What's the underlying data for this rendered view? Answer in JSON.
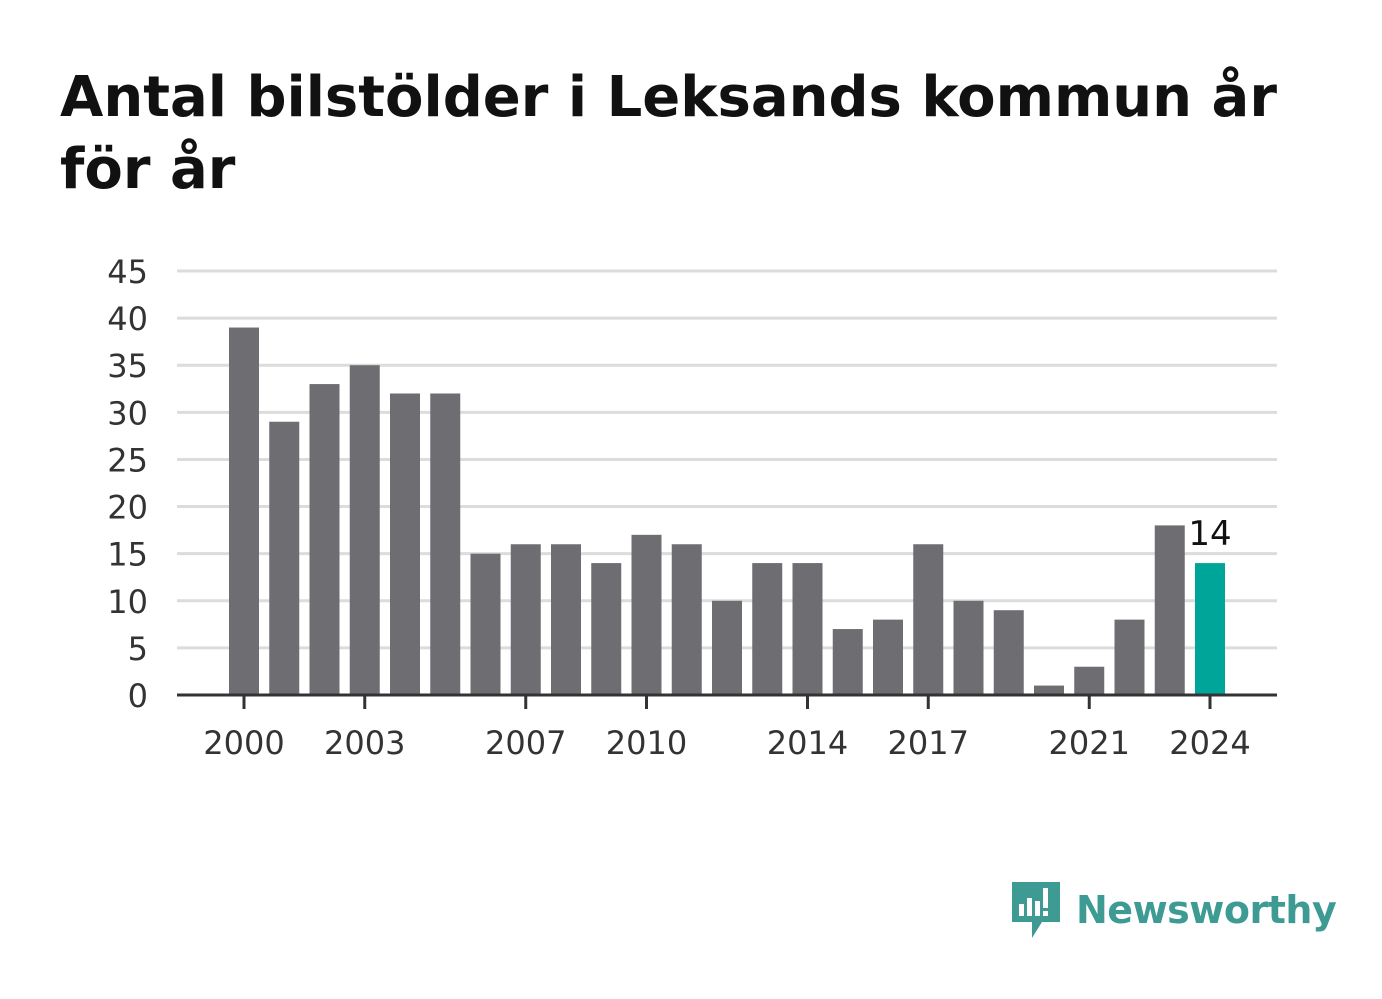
{
  "title": "Antal bilstölder i Leksands kommun år för år",
  "brand": {
    "name": "Newsworthy",
    "icon": "newsworthy-speech-bubble-bar-icon",
    "color": "#3d9b93"
  },
  "chart_data": {
    "type": "bar",
    "title": "Antal bilstölder i Leksands kommun år för år",
    "xlabel": "",
    "ylabel": "",
    "categories": [
      2000,
      2001,
      2002,
      2003,
      2004,
      2005,
      2006,
      2007,
      2008,
      2009,
      2010,
      2011,
      2012,
      2013,
      2014,
      2015,
      2016,
      2017,
      2018,
      2019,
      2020,
      2021,
      2022,
      2023,
      2024
    ],
    "values": [
      39,
      29,
      33,
      35,
      32,
      32,
      15,
      16,
      16,
      14,
      17,
      16,
      10,
      14,
      14,
      7,
      8,
      16,
      10,
      9,
      1,
      3,
      8,
      18,
      14
    ],
    "ylim": [
      0,
      45
    ],
    "yticks": [
      0,
      5,
      10,
      15,
      20,
      25,
      30,
      35,
      40,
      45
    ],
    "xticks_labeled": [
      2000,
      2003,
      2007,
      2010,
      2014,
      2017,
      2021,
      2024
    ],
    "grid": true,
    "bar_color": "#6e6d72",
    "highlight": {
      "category": 2024,
      "color": "#00a59a",
      "label": "14"
    }
  }
}
